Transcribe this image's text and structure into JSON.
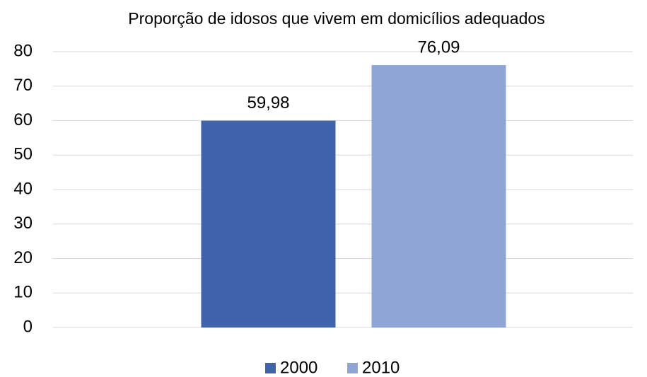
{
  "chart_data": {
    "type": "bar",
    "title": "Proporção de idosos que vivem em domicílios adequados",
    "categories": [
      null
    ],
    "series": [
      {
        "name": "2000",
        "color": "#3f64ad",
        "values": [
          59.98
        ],
        "value_labels": [
          "59,98"
        ]
      },
      {
        "name": "2010",
        "color": "#8fa5d6",
        "values": [
          76.09
        ],
        "value_labels": [
          "76,09"
        ]
      }
    ],
    "ylim": [
      0,
      80
    ],
    "yticks": [
      0,
      10,
      20,
      30,
      40,
      50,
      60,
      70,
      80
    ],
    "grid": true,
    "legend": "bottom"
  }
}
